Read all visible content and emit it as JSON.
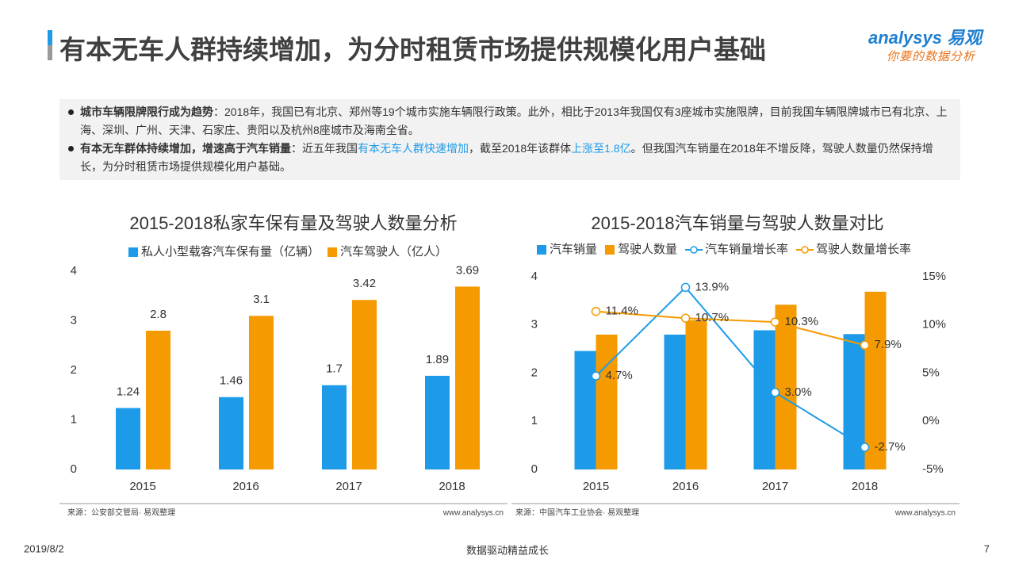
{
  "header": {
    "title": "有本无车人群持续增加，为分时租赁市场提供规模化用户基础",
    "logo": "analysys 易观",
    "tagline": "你要的数据分析"
  },
  "bullets": [
    [
      "城市车辆限牌限行成为趋势",
      "：2018年，我国已有北京、郑州等19个城市实施车辆限行政策。此外，相比于2013年我国仅有3座城市实施限牌，目前我国车辆限牌城市已有北京、上海、深圳、广州、天津、石家庄、贵阳以及杭州8座城市及海南全省。"
    ],
    [
      "有本无车群体持续增加，增速高于汽车销量",
      "：近五年我国",
      "有本无车人群快速增加",
      "，截至2018年该群体",
      "上涨至1.8亿",
      "。但我国汽车销量在2018年不增反降，驾驶人数量仍然保持增长，为分时租赁市场提供规模化用户基础。"
    ]
  ],
  "chart_data": [
    {
      "type": "bar",
      "title": "2015-2018私家车保有量及驾驶人数量分析",
      "categories": [
        "2015",
        "2016",
        "2017",
        "2018"
      ],
      "series": [
        {
          "name": "私人小型载客汽车保有量（亿辆）",
          "color": "#1e9be8",
          "values": [
            1.24,
            1.46,
            1.7,
            1.89
          ]
        },
        {
          "name": "汽车驾驶人（亿人）",
          "color": "#f59a00",
          "values": [
            2.8,
            3.1,
            3.42,
            3.69
          ]
        }
      ],
      "ylim": [
        0,
        4
      ],
      "yticks": [
        0,
        1,
        2,
        3,
        4
      ],
      "source": "来源：公安部交管局· 易观整理",
      "site": "www.analysys.cn"
    },
    {
      "type": "combo",
      "title": "2015-2018汽车销量与驾驶人数量对比",
      "categories": [
        "2015",
        "2016",
        "2017",
        "2018"
      ],
      "series": [
        {
          "name": "汽车销量",
          "kind": "bar",
          "color": "#1e9be8",
          "values": [
            2.46,
            2.8,
            2.89,
            2.81
          ]
        },
        {
          "name": "驾驶人数量",
          "kind": "bar",
          "color": "#f59a00",
          "values": [
            2.8,
            3.1,
            3.42,
            3.69
          ]
        },
        {
          "name": "汽车销量增长率",
          "kind": "line",
          "axis": "y2",
          "color": "#1e9be8",
          "values": [
            4.7,
            13.9,
            3.0,
            -2.7
          ],
          "value_labels": [
            "4.7%",
            "13.9%",
            "3.0%",
            "-2.7%"
          ]
        },
        {
          "name": "驾驶人数量增长率",
          "kind": "line",
          "axis": "y2",
          "color": "#f59a00",
          "values": [
            11.4,
            10.7,
            10.3,
            7.9
          ],
          "value_labels": [
            "11.4%",
            "10.7%",
            "10.3%",
            "7.9%"
          ]
        }
      ],
      "ylim": [
        0,
        4
      ],
      "yticks": [
        0,
        1,
        2,
        3,
        4
      ],
      "y2lim": [
        -5,
        15
      ],
      "y2ticks": [
        {
          "value": -5,
          "label": "-5%"
        },
        {
          "value": 0,
          "label": "0%"
        },
        {
          "value": 5,
          "label": "5%"
        },
        {
          "value": 10,
          "label": "10%"
        },
        {
          "value": 15,
          "label": "15%"
        }
      ],
      "source": "来源：中国汽车工业协会· 易观整理",
      "site": "www.analysys.cn"
    }
  ],
  "footer": {
    "date": "2019/8/2",
    "slogan": "数据驱动精益成长",
    "page": "7"
  }
}
